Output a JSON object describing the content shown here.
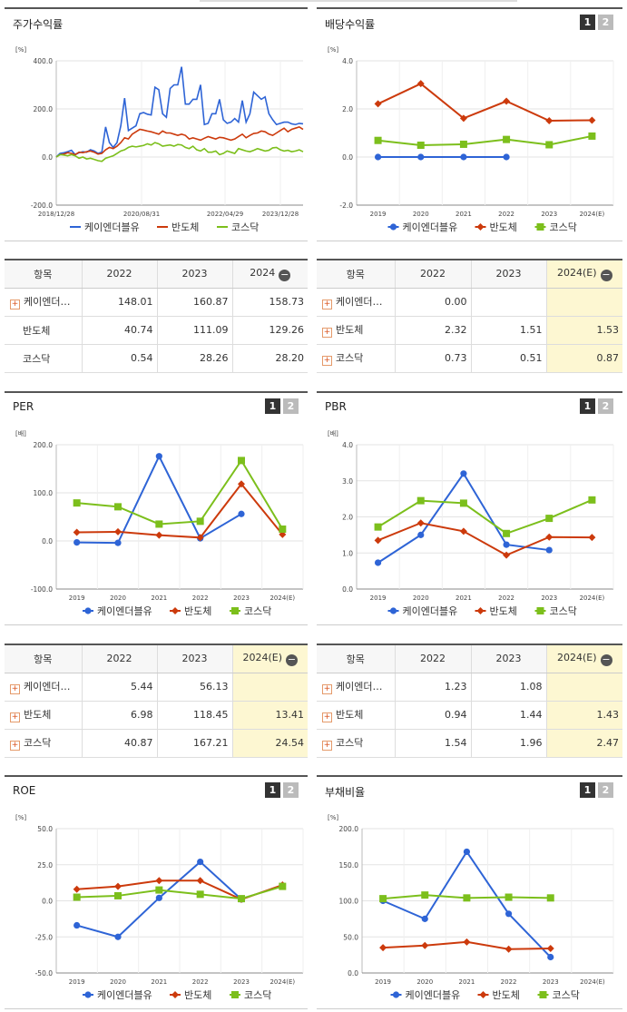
{
  "colors": {
    "kay": "#2e64d6",
    "semi": "#cc3a0c",
    "kosdaq": "#7cbf1c"
  },
  "icons": {
    "plus": "plus-icon",
    "minus": "minus-icon",
    "legend": "legend-marker-icon"
  },
  "legend_labels": [
    "케이엔더블유",
    "반도체",
    "코스닥"
  ],
  "pager": [
    "1",
    "2"
  ],
  "stock_chart": {
    "title": "주가수익률",
    "unit": "[%]",
    "yticks": [
      "400.0",
      "200.0",
      "0.0",
      "-200.0"
    ],
    "xticks": [
      "2018/12/28",
      "2020/08/31",
      "2022/04/29",
      "2023/12/28"
    ],
    "chart_data": {
      "type": "line",
      "ylim": [
        -200,
        400
      ],
      "x_range": [
        "2018/12/28",
        "2024/03"
      ],
      "series": [
        {
          "name": "케이엔더블유",
          "values": [
            0,
            15,
            18,
            22,
            28,
            10,
            18,
            22,
            20,
            30,
            25,
            15,
            20,
            125,
            60,
            40,
            60,
            130,
            245,
            110,
            120,
            130,
            180,
            185,
            178,
            175,
            290,
            280,
            180,
            165,
            285,
            300,
            300,
            375,
            220,
            220,
            240,
            240,
            300,
            135,
            140,
            180,
            180,
            240,
            155,
            140,
            145,
            160,
            145,
            235,
            145,
            180,
            270,
            255,
            240,
            250,
            180,
            155,
            135,
            140,
            145,
            145,
            138,
            135,
            140,
            138
          ]
        },
        {
          "name": "반도체",
          "values": [
            0,
            10,
            12,
            18,
            15,
            10,
            20,
            18,
            22,
            25,
            20,
            12,
            15,
            30,
            40,
            35,
            45,
            60,
            80,
            75,
            95,
            105,
            115,
            112,
            108,
            105,
            100,
            95,
            108,
            100,
            100,
            95,
            90,
            95,
            90,
            75,
            80,
            75,
            70,
            78,
            85,
            80,
            75,
            82,
            80,
            75,
            70,
            75,
            85,
            95,
            80,
            90,
            98,
            100,
            108,
            105,
            95,
            90,
            100,
            110,
            120,
            105,
            115,
            120,
            125,
            115
          ]
        },
        {
          "name": "코스닥",
          "values": [
            0,
            10,
            8,
            5,
            10,
            5,
            -5,
            0,
            -8,
            -5,
            -10,
            -15,
            -18,
            -5,
            0,
            5,
            15,
            25,
            30,
            40,
            45,
            42,
            45,
            48,
            55,
            50,
            60,
            55,
            45,
            48,
            50,
            45,
            52,
            50,
            40,
            35,
            45,
            30,
            25,
            35,
            20,
            20,
            25,
            10,
            15,
            25,
            20,
            15,
            35,
            30,
            25,
            22,
            28,
            35,
            30,
            25,
            28,
            38,
            40,
            30,
            25,
            28,
            22,
            25,
            30,
            22
          ]
        }
      ]
    }
  },
  "div_chart": {
    "title": "배당수익률",
    "unit": "[%]",
    "yticks": [
      "4.0",
      "2.0",
      "0.0",
      "-2.0"
    ],
    "chart_data": {
      "type": "line",
      "categories": [
        "2019",
        "2020",
        "2021",
        "2022",
        "2023",
        "2024(E)"
      ],
      "ylim": [
        -2,
        4
      ],
      "series": [
        {
          "name": "케이엔더블유",
          "values": [
            0,
            0,
            0,
            0,
            null,
            null
          ]
        },
        {
          "name": "반도체",
          "values": [
            2.21,
            3.05,
            1.61,
            2.32,
            1.51,
            1.53
          ]
        },
        {
          "name": "코스닥",
          "values": [
            0.69,
            0.49,
            0.53,
            0.73,
            0.51,
            0.87
          ]
        }
      ]
    }
  },
  "per_chart": {
    "title": "PER",
    "unit": "[배]",
    "yticks": [
      "200.0",
      "100.0",
      "0.0",
      "-100.0"
    ],
    "chart_data": {
      "type": "line",
      "categories": [
        "2019",
        "2020",
        "2021",
        "2022",
        "2023",
        "2024(E)"
      ],
      "ylim": [
        -100,
        200
      ],
      "series": [
        {
          "name": "케이엔더블유",
          "values": [
            -3,
            -4,
            176,
            5.44,
            56.13,
            null
          ]
        },
        {
          "name": "반도체",
          "values": [
            18,
            19,
            12,
            6.98,
            118.45,
            13.41
          ]
        },
        {
          "name": "코스닥",
          "values": [
            79,
            71,
            35,
            40.87,
            167.21,
            24.54
          ]
        }
      ]
    }
  },
  "pbr_chart": {
    "title": "PBR",
    "unit": "[배]",
    "yticks": [
      "4.0",
      "3.0",
      "2.0",
      "1.0",
      "0.0"
    ],
    "chart_data": {
      "type": "line",
      "categories": [
        "2019",
        "2020",
        "2021",
        "2022",
        "2023",
        "2024(E)"
      ],
      "ylim": [
        0,
        4
      ],
      "series": [
        {
          "name": "케이엔더블유",
          "values": [
            0.73,
            1.5,
            3.2,
            1.23,
            1.08,
            null
          ]
        },
        {
          "name": "반도체",
          "values": [
            1.35,
            1.83,
            1.6,
            0.94,
            1.44,
            1.43
          ]
        },
        {
          "name": "코스닥",
          "values": [
            1.72,
            2.45,
            2.38,
            1.54,
            1.96,
            2.47
          ]
        }
      ]
    }
  },
  "roe_chart": {
    "title": "ROE",
    "unit": "[%]",
    "yticks": [
      "50.0",
      "25.0",
      "0.0",
      "-25.0",
      "-50.0"
    ],
    "chart_data": {
      "type": "line",
      "categories": [
        "2019",
        "2020",
        "2021",
        "2022",
        "2023",
        "2024(E)"
      ],
      "ylim": [
        -50,
        50
      ],
      "series": [
        {
          "name": "케이엔더블유",
          "values": [
            -17,
            -25,
            2,
            27,
            1,
            null
          ]
        },
        {
          "name": "반도체",
          "values": [
            8,
            10,
            14,
            14,
            1,
            11
          ]
        },
        {
          "name": "코스닥",
          "values": [
            2.5,
            3.5,
            7.5,
            4.5,
            1.5,
            10
          ]
        }
      ]
    }
  },
  "debt_chart": {
    "title": "부채비율",
    "unit": "[%]",
    "yticks": [
      "200.0",
      "150.0",
      "100.0",
      "50.0",
      "0.0"
    ],
    "chart_data": {
      "type": "line",
      "categories": [
        "2019",
        "2020",
        "2021",
        "2022",
        "2023",
        "2024(E)"
      ],
      "ylim": [
        0,
        200
      ],
      "series": [
        {
          "name": "케이엔더블유",
          "values": [
            100,
            75,
            168,
            82,
            22,
            null
          ]
        },
        {
          "name": "반도체",
          "values": [
            35,
            38,
            43,
            33,
            34,
            null
          ]
        },
        {
          "name": "코스닥",
          "values": [
            103,
            108,
            104,
            105,
            104,
            null
          ]
        }
      ]
    }
  },
  "tables": {
    "stock": {
      "headers": [
        "항목",
        "2022",
        "2023",
        "2024"
      ],
      "rows": [
        {
          "name": "케이엔더…",
          "plus": "+",
          "values": [
            "148.01",
            "160.87",
            "158.73"
          ]
        },
        {
          "name": "반도체",
          "plus": "",
          "values": [
            "40.74",
            "111.09",
            "129.26"
          ]
        },
        {
          "name": "코스닥",
          "plus": "",
          "values": [
            "0.54",
            "28.26",
            "28.20"
          ]
        }
      ]
    },
    "div": {
      "headers": [
        "항목",
        "2022",
        "2023",
        "2024(E)"
      ],
      "rows": [
        {
          "name": "케이엔더…",
          "plus": "+",
          "values": [
            "0.00",
            "",
            ""
          ]
        },
        {
          "name": "반도체",
          "plus": "+",
          "values": [
            "2.32",
            "1.51",
            "1.53"
          ]
        },
        {
          "name": "코스닥",
          "plus": "+",
          "values": [
            "0.73",
            "0.51",
            "0.87"
          ]
        }
      ]
    },
    "per": {
      "headers": [
        "항목",
        "2022",
        "2023",
        "2024(E)"
      ],
      "rows": [
        {
          "name": "케이엔더…",
          "plus": "+",
          "values": [
            "5.44",
            "56.13",
            ""
          ]
        },
        {
          "name": "반도체",
          "plus": "+",
          "values": [
            "6.98",
            "118.45",
            "13.41"
          ]
        },
        {
          "name": "코스닥",
          "plus": "+",
          "values": [
            "40.87",
            "167.21",
            "24.54"
          ]
        }
      ]
    },
    "pbr": {
      "headers": [
        "항목",
        "2022",
        "2023",
        "2024(E)"
      ],
      "rows": [
        {
          "name": "케이엔더…",
          "plus": "+",
          "values": [
            "1.23",
            "1.08",
            ""
          ]
        },
        {
          "name": "반도체",
          "plus": "+",
          "values": [
            "0.94",
            "1.44",
            "1.43"
          ]
        },
        {
          "name": "코스닥",
          "plus": "+",
          "values": [
            "1.54",
            "1.96",
            "2.47"
          ]
        }
      ]
    }
  }
}
